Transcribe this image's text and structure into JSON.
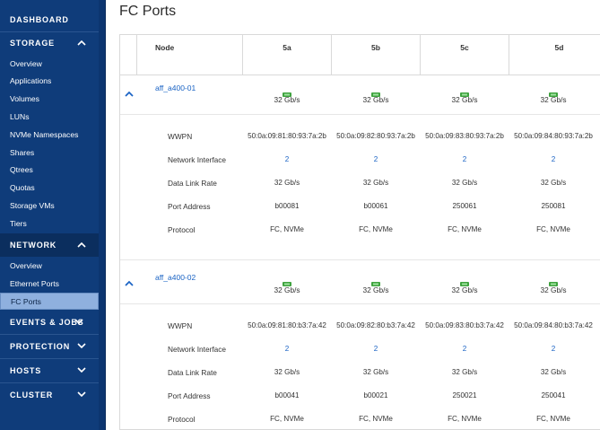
{
  "sidebar": {
    "dashboard": "DASHBOARD",
    "storage": {
      "label": "STORAGE",
      "items": [
        "Overview",
        "Applications",
        "Volumes",
        "LUNs",
        "NVMe Namespaces",
        "Shares",
        "Qtrees",
        "Quotas",
        "Storage VMs",
        "Tiers"
      ]
    },
    "network": {
      "label": "NETWORK",
      "items": [
        "Overview",
        "Ethernet Ports",
        "FC Ports"
      ],
      "selected": "FC Ports"
    },
    "events_jobs": "EVENTS & JOBS",
    "protection": "PROTECTION",
    "hosts": "HOSTS",
    "cluster": "CLUSTER"
  },
  "page": {
    "title": "FC Ports"
  },
  "table": {
    "headers": [
      "Node",
      "5a",
      "5b",
      "5c",
      "5d"
    ],
    "detail_labels": [
      "WWPN",
      "Network Interface",
      "Data Link Rate",
      "Port Address",
      "Protocol"
    ],
    "nodes": [
      {
        "name": "aff_a400-01",
        "speeds": [
          "32 Gb/s",
          "32 Gb/s",
          "32 Gb/s",
          "32 Gb/s"
        ],
        "wwpn": [
          "50:0a:09:81:80:93:7a:2b",
          "50:0a:09:82:80:93:7a:2b",
          "50:0a:09:83:80:93:7a:2b",
          "50:0a:09:84:80:93:7a:2b"
        ],
        "network_interface": [
          "2",
          "2",
          "2",
          "2"
        ],
        "data_link_rate": [
          "32 Gb/s",
          "32 Gb/s",
          "32 Gb/s",
          "32 Gb/s"
        ],
        "port_address": [
          "b00081",
          "b00061",
          "250061",
          "250081"
        ],
        "protocol": [
          "FC, NVMe",
          "FC, NVMe",
          "FC, NVMe",
          "FC, NVMe"
        ]
      },
      {
        "name": "aff_a400-02",
        "speeds": [
          "32 Gb/s",
          "32 Gb/s",
          "32 Gb/s",
          "32 Gb/s"
        ],
        "wwpn": [
          "50:0a:09:81:80:b3:7a:42",
          "50:0a:09:82:80:b3:7a:42",
          "50:0a:09:83:80:b3:7a:42",
          "50:0a:09:84:80:b3:7a:42"
        ],
        "network_interface": [
          "2",
          "2",
          "2",
          "2"
        ],
        "data_link_rate": [
          "32 Gb/s",
          "32 Gb/s",
          "32 Gb/s",
          "32 Gb/s"
        ],
        "port_address": [
          "b00041",
          "b00021",
          "250021",
          "250041"
        ],
        "protocol": [
          "FC, NVMe",
          "FC, NVMe",
          "FC, NVMe",
          "FC, NVMe"
        ]
      }
    ]
  },
  "colors": {
    "sidebar_bg": "#0f3c7a",
    "selected_bg": "#8fb0de",
    "link": "#1a63c4",
    "port_icon": "#3fa33f"
  }
}
